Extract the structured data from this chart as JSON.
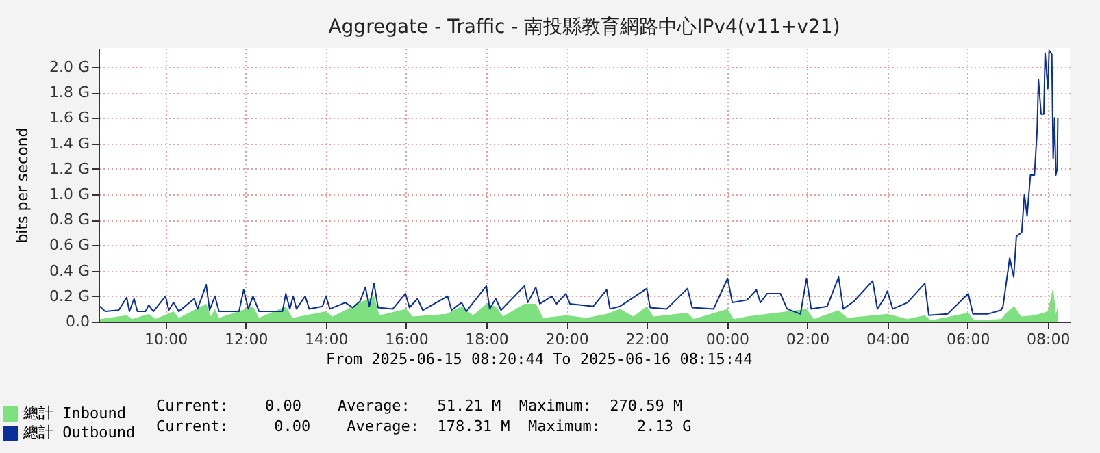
{
  "chart_data": {
    "type": "line",
    "title": "Aggregate - Traffic -  南投縣教育網路中心IPv4(v11+v21)",
    "ylabel": "bits per second",
    "xlim": [
      "2025-06-15T08:20",
      "2025-06-16T08:33"
    ],
    "xticks": [
      {
        "value": "2025-06-15T10:00",
        "label": "10:00"
      },
      {
        "value": "2025-06-15T12:00",
        "label": "12:00"
      },
      {
        "value": "2025-06-15T14:00",
        "label": "14:00"
      },
      {
        "value": "2025-06-15T16:00",
        "label": "16:00"
      },
      {
        "value": "2025-06-15T18:00",
        "label": "18:00"
      },
      {
        "value": "2025-06-15T20:00",
        "label": "20:00"
      },
      {
        "value": "2025-06-15T22:00",
        "label": "22:00"
      },
      {
        "value": "2025-06-16T00:00",
        "label": "00:00"
      },
      {
        "value": "2025-06-16T02:00",
        "label": "02:00"
      },
      {
        "value": "2025-06-16T04:00",
        "label": "04:00"
      },
      {
        "value": "2025-06-16T06:00",
        "label": "06:00"
      },
      {
        "value": "2025-06-16T08:00",
        "label": "08:00"
      }
    ],
    "ylim": [
      0,
      2.15
    ],
    "yticks": [
      {
        "value": 0,
        "label": "0.0"
      },
      {
        "value": 0.2,
        "label": "0.2 G"
      },
      {
        "value": 0.4,
        "label": "0.4 G"
      },
      {
        "value": 0.6,
        "label": "0.6 G"
      },
      {
        "value": 0.8,
        "label": "0.8 G"
      },
      {
        "value": 1.0,
        "label": "1.0 G"
      },
      {
        "value": 1.2,
        "label": "1.2 G"
      },
      {
        "value": 1.4,
        "label": "1.4 G"
      },
      {
        "value": 1.6,
        "label": "1.6 G"
      },
      {
        "value": 1.8,
        "label": "1.8 G"
      },
      {
        "value": 2.0,
        "label": "2.0 G"
      }
    ],
    "grid": true,
    "legend": "bottom left",
    "annotations": [
      "From 2025-06-15 08:20:44 To 2025-06-16 08:15:44",
      "Current:    0.00    Average:   51.21 M  Maximum:  270.59 M",
      "Current:     0.00    Average:  178.31 M  Maximum:    2.13 G"
    ],
    "series": [
      {
        "name": "總計 Inbound",
        "type": "area",
        "color": "#7ee07e",
        "x": [
          "2025-06-15T08:22",
          "2025-06-15T09:02",
          "2025-06-15T09:10",
          "2025-06-15T09:35",
          "2025-06-15T09:45",
          "2025-06-15T10:12",
          "2025-06-15T10:20",
          "2025-06-15T11:01",
          "2025-06-15T11:08",
          "2025-06-15T11:14",
          "2025-06-15T11:20",
          "2025-06-15T12:11",
          "2025-06-15T12:20",
          "2025-06-15T13:00",
          "2025-06-15T13:10",
          "2025-06-15T14:00",
          "2025-06-15T14:10",
          "2025-06-15T14:59",
          "2025-06-15T15:12",
          "2025-06-15T15:20",
          "2025-06-15T16:00",
          "2025-06-15T16:10",
          "2025-06-15T17:00",
          "2025-06-15T17:23",
          "2025-06-15T17:40",
          "2025-06-15T18:00",
          "2025-06-15T18:14",
          "2025-06-15T18:25",
          "2025-06-15T18:57",
          "2025-06-15T19:14",
          "2025-06-15T19:25",
          "2025-06-15T20:00",
          "2025-06-15T20:30",
          "2025-06-15T21:00",
          "2025-06-15T21:20",
          "2025-06-15T21:40",
          "2025-06-15T22:00",
          "2025-06-15T22:10",
          "2025-06-15T23:01",
          "2025-06-15T23:10",
          "2025-06-16T00:01",
          "2025-06-16T00:10",
          "2025-06-16T00:30",
          "2025-06-16T01:00",
          "2025-06-16T01:59",
          "2025-06-16T02:10",
          "2025-06-16T02:47",
          "2025-06-16T03:00",
          "2025-06-16T03:38",
          "2025-06-16T04:00",
          "2025-06-16T04:30",
          "2025-06-16T04:56",
          "2025-06-16T05:05",
          "2025-06-16T06:01",
          "2025-06-16T06:10",
          "2025-06-16T06:50",
          "2025-06-16T07:00",
          "2025-06-16T07:10",
          "2025-06-16T07:20",
          "2025-06-16T07:40",
          "2025-06-16T08:00",
          "2025-06-16T08:08",
          "2025-06-16T08:12",
          "2025-06-16T08:15"
        ],
        "values": [
          0.02,
          0.05,
          0.02,
          0.06,
          0.02,
          0.08,
          0.03,
          0.14,
          0.04,
          0.1,
          0.03,
          0.12,
          0.03,
          0.12,
          0.03,
          0.08,
          0.04,
          0.17,
          0.2,
          0.05,
          0.1,
          0.04,
          0.06,
          0.12,
          0.05,
          0.14,
          0.12,
          0.04,
          0.14,
          0.14,
          0.03,
          0.05,
          0.03,
          0.06,
          0.1,
          0.04,
          0.12,
          0.04,
          0.07,
          0.02,
          0.1,
          0.02,
          0.04,
          0.06,
          0.1,
          0.02,
          0.09,
          0.03,
          0.05,
          0.06,
          0.02,
          0.05,
          0.01,
          0.07,
          0.01,
          0.02,
          0.08,
          0.12,
          0.04,
          0.05,
          0.08,
          0.27,
          0.06,
          0.12
        ]
      },
      {
        "name": "總計 Outbound",
        "color": "#0a2e9a",
        "x": [
          "2025-06-15T08:22",
          "2025-06-15T08:30",
          "2025-06-15T08:50",
          "2025-06-15T09:02",
          "2025-06-15T09:06",
          "2025-06-15T09:13",
          "2025-06-15T09:18",
          "2025-06-15T09:30",
          "2025-06-15T09:35",
          "2025-06-15T09:42",
          "2025-06-15T10:00",
          "2025-06-15T10:05",
          "2025-06-15T10:12",
          "2025-06-15T10:20",
          "2025-06-15T10:43",
          "2025-06-15T10:48",
          "2025-06-15T11:01",
          "2025-06-15T11:06",
          "2025-06-15T11:14",
          "2025-06-15T11:20",
          "2025-06-15T11:50",
          "2025-06-15T11:57",
          "2025-06-15T12:04",
          "2025-06-15T12:11",
          "2025-06-15T12:20",
          "2025-06-15T12:55",
          "2025-06-15T13:00",
          "2025-06-15T13:06",
          "2025-06-15T13:11",
          "2025-06-15T13:16",
          "2025-06-15T13:29",
          "2025-06-15T13:35",
          "2025-06-15T13:55",
          "2025-06-15T14:00",
          "2025-06-15T14:06",
          "2025-06-15T14:29",
          "2025-06-15T14:40",
          "2025-06-15T14:51",
          "2025-06-15T14:59",
          "2025-06-15T15:05",
          "2025-06-15T15:12",
          "2025-06-15T15:18",
          "2025-06-15T15:40",
          "2025-06-15T15:59",
          "2025-06-15T16:05",
          "2025-06-15T16:17",
          "2025-06-15T16:25",
          "2025-06-15T17:02",
          "2025-06-15T17:08",
          "2025-06-15T17:23",
          "2025-06-15T17:30",
          "2025-06-15T18:00",
          "2025-06-15T18:05",
          "2025-06-15T18:14",
          "2025-06-15T18:22",
          "2025-06-15T18:57",
          "2025-06-15T19:02",
          "2025-06-15T19:14",
          "2025-06-15T19:20",
          "2025-06-15T19:38",
          "2025-06-15T19:45",
          "2025-06-15T19:59",
          "2025-06-15T20:05",
          "2025-06-15T20:40",
          "2025-06-15T21:00",
          "2025-06-15T21:05",
          "2025-06-15T21:20",
          "2025-06-15T22:00",
          "2025-06-15T22:05",
          "2025-06-15T22:30",
          "2025-06-15T23:01",
          "2025-06-15T23:08",
          "2025-06-15T23:40",
          "2025-06-16T00:01",
          "2025-06-16T00:08",
          "2025-06-16T00:30",
          "2025-06-16T00:44",
          "2025-06-16T00:50",
          "2025-06-16T01:00",
          "2025-06-16T01:20",
          "2025-06-16T01:30",
          "2025-06-16T01:50",
          "2025-06-16T01:59",
          "2025-06-16T02:06",
          "2025-06-16T02:30",
          "2025-06-16T02:47",
          "2025-06-16T02:54",
          "2025-06-16T03:10",
          "2025-06-16T03:38",
          "2025-06-16T03:45",
          "2025-06-16T03:55",
          "2025-06-16T04:00",
          "2025-06-16T04:08",
          "2025-06-16T04:30",
          "2025-06-16T04:56",
          "2025-06-16T05:02",
          "2025-06-16T05:30",
          "2025-06-16T06:01",
          "2025-06-16T06:08",
          "2025-06-16T06:30",
          "2025-06-16T06:50",
          "2025-06-16T06:53",
          "2025-06-16T07:03",
          "2025-06-16T07:09",
          "2025-06-16T07:13",
          "2025-06-16T07:21",
          "2025-06-16T07:25",
          "2025-06-16T07:29",
          "2025-06-16T07:34",
          "2025-06-16T07:40",
          "2025-06-16T07:44",
          "2025-06-16T07:46",
          "2025-06-16T07:50",
          "2025-06-16T07:54",
          "2025-06-16T07:56",
          "2025-06-16T08:00",
          "2025-06-16T08:02",
          "2025-06-16T08:06",
          "2025-06-16T08:08",
          "2025-06-16T08:10",
          "2025-06-16T08:12",
          "2025-06-16T08:14",
          "2025-06-16T08:15"
        ],
        "values": [
          0.12,
          0.08,
          0.09,
          0.19,
          0.08,
          0.18,
          0.08,
          0.08,
          0.13,
          0.08,
          0.2,
          0.09,
          0.15,
          0.08,
          0.18,
          0.1,
          0.29,
          0.09,
          0.2,
          0.08,
          0.08,
          0.25,
          0.1,
          0.2,
          0.08,
          0.08,
          0.22,
          0.1,
          0.2,
          0.1,
          0.2,
          0.1,
          0.12,
          0.2,
          0.1,
          0.15,
          0.11,
          0.16,
          0.27,
          0.12,
          0.3,
          0.11,
          0.1,
          0.22,
          0.11,
          0.18,
          0.09,
          0.2,
          0.09,
          0.15,
          0.08,
          0.28,
          0.1,
          0.18,
          0.09,
          0.28,
          0.15,
          0.27,
          0.14,
          0.2,
          0.14,
          0.22,
          0.14,
          0.12,
          0.25,
          0.1,
          0.12,
          0.26,
          0.11,
          0.1,
          0.26,
          0.11,
          0.1,
          0.34,
          0.15,
          0.17,
          0.25,
          0.15,
          0.22,
          0.22,
          0.1,
          0.06,
          0.34,
          0.1,
          0.12,
          0.35,
          0.1,
          0.16,
          0.32,
          0.1,
          0.18,
          0.24,
          0.1,
          0.15,
          0.3,
          0.05,
          0.06,
          0.22,
          0.06,
          0.06,
          0.09,
          0.12,
          0.5,
          0.35,
          0.67,
          0.7,
          1.0,
          0.83,
          1.15,
          1.15,
          1.5,
          1.9,
          1.63,
          1.63,
          2.11,
          1.83,
          2.13,
          2.1,
          1.28,
          1.6,
          1.15,
          1.2,
          1.6
        ]
      }
    ]
  }
}
